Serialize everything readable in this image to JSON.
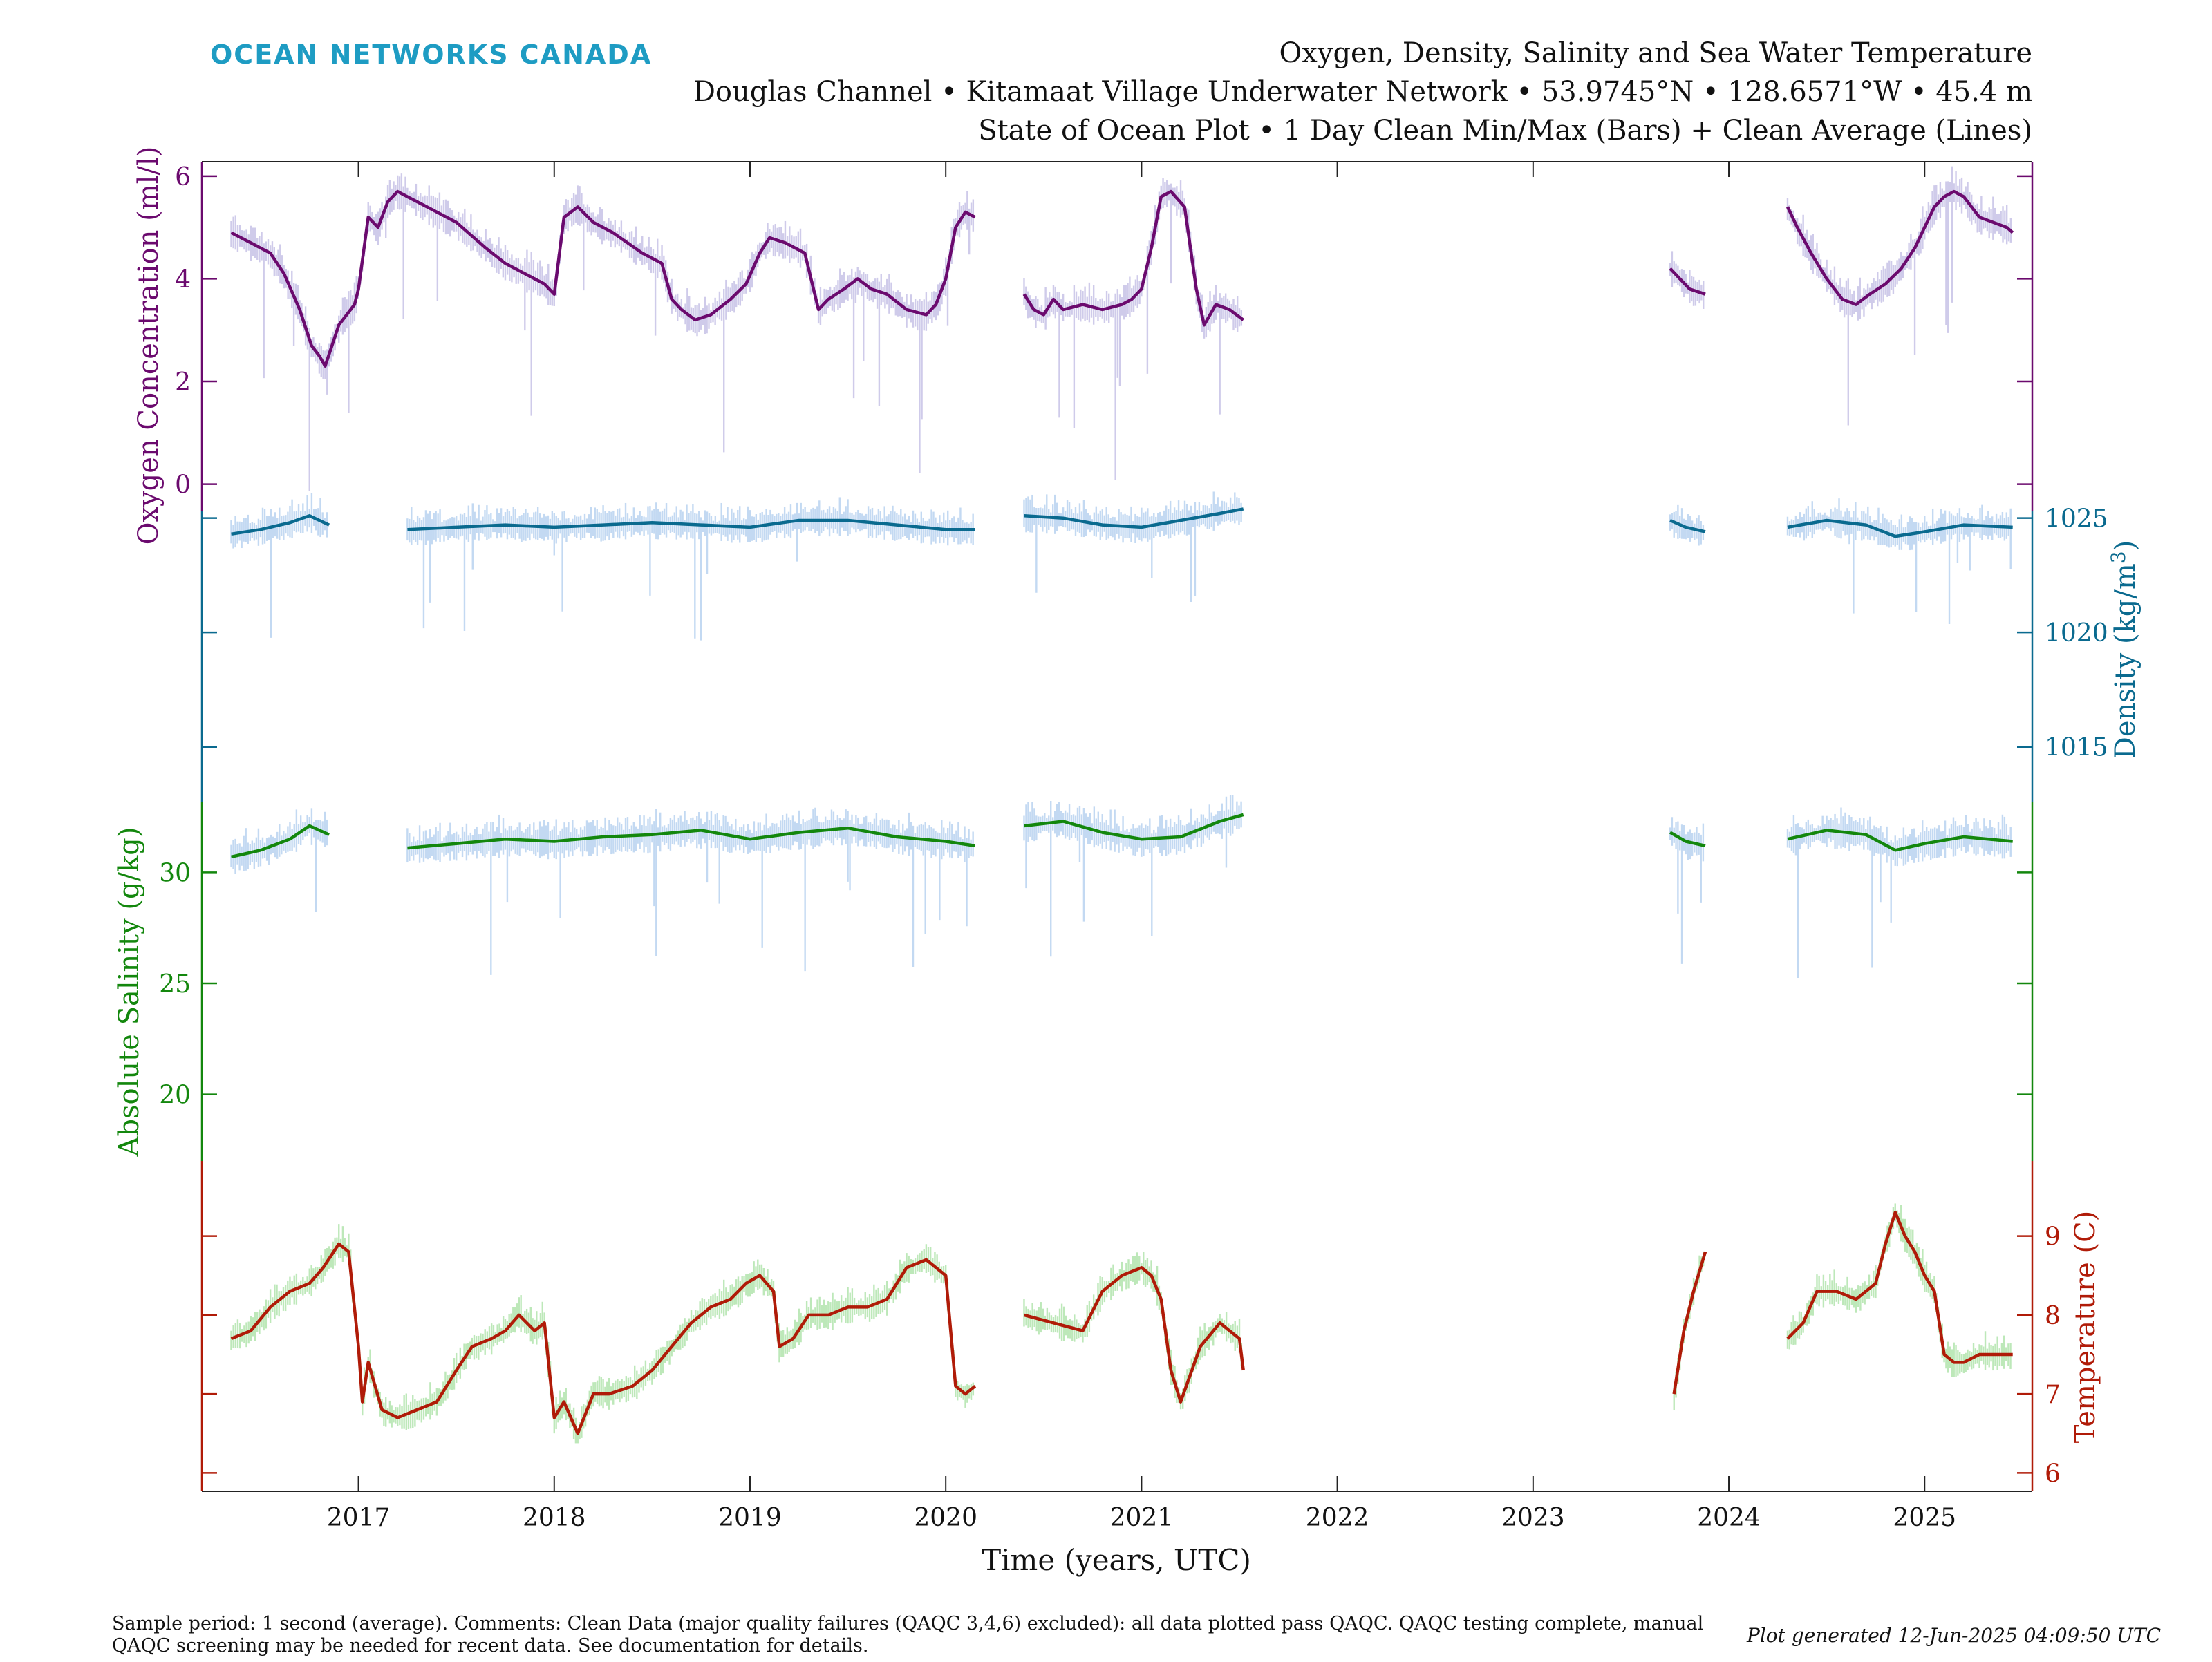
{
  "header": {
    "brand": "OCEAN NETWORKS CANADA",
    "title_line1": "Oxygen, Density, Salinity and Sea Water Temperature",
    "title_line2": "Douglas Channel • Kitamaat Village Underwater Network • 53.9745°N • 128.6571°W • 45.4 m",
    "title_line3": "State of Ocean Plot • 1 Day Clean Min/Max (Bars) + Clean Average (Lines)"
  },
  "footer": {
    "note_line1": "Sample period: 1 second (average). Comments: Clean Data (major quality failures (QAQC 3,4,6) excluded): all data plotted pass QAQC. QAQC testing complete, manual",
    "note_line2": "QAQC screening may be needed for recent data. See documentation for details.",
    "generated": "Plot generated 12-Jun-2025 04:09:50 UTC"
  },
  "colors": {
    "oxygen": "#6b0a6e",
    "density": "#0a6a8f",
    "salinity": "#13870d",
    "temperature": "#b01b08",
    "range_blue": "#c3d9f2",
    "range_lilac": "#cfcbea",
    "range_green": "#bde8b9",
    "brand": "#1e9cc3"
  },
  "chart_data": {
    "type": "line",
    "xlabel": "Time (years, UTC)",
    "xlim": [
      2016.2,
      2025.55
    ],
    "xticks": [
      2017,
      2018,
      2019,
      2020,
      2021,
      2022,
      2023,
      2024,
      2025
    ],
    "xtick_labels": [
      "2017",
      "2018",
      "2019",
      "2020",
      "2021",
      "2022",
      "2023",
      "2024",
      "2025"
    ],
    "legend": "none",
    "grid": false,
    "series": [
      {
        "name": "Oxygen Concentration",
        "ylabel": "Oxygen Concentration (ml/l)",
        "axis_side": "left",
        "ylim": [
          -0.8,
          6.2
        ],
        "yticks": [
          0,
          2,
          4,
          6
        ],
        "ytick_labels": [
          "0",
          "2",
          "4",
          "6"
        ],
        "x": [
          2016.35,
          2016.45,
          2016.55,
          2016.62,
          2016.7,
          2016.76,
          2016.8,
          2016.83,
          2016.9,
          2016.98,
          2017.0,
          2017.05,
          2017.1,
          2017.15,
          2017.2,
          2017.25,
          2017.35,
          2017.5,
          2017.65,
          2017.75,
          2017.85,
          2017.95,
          2018.0,
          2018.05,
          2018.12,
          2018.2,
          2018.3,
          2018.45,
          2018.55,
          2018.6,
          2018.65,
          2018.72,
          2018.8,
          2018.9,
          2018.98,
          2019.05,
          2019.1,
          2019.18,
          2019.28,
          2019.35,
          2019.4,
          2019.48,
          2019.55,
          2019.62,
          2019.7,
          2019.8,
          2019.9,
          2019.95,
          2020.0,
          2020.05,
          2020.1,
          2020.15,
          null,
          2020.4,
          2020.45,
          2020.5,
          2020.55,
          2020.6,
          2020.7,
          2020.8,
          2020.9,
          2020.95,
          2021.0,
          2021.05,
          2021.1,
          2021.15,
          2021.22,
          2021.28,
          2021.32,
          2021.38,
          2021.45,
          2021.52,
          null,
          2023.7,
          2023.75,
          2023.8,
          2023.88,
          null,
          2024.3,
          2024.35,
          2024.42,
          2024.5,
          2024.58,
          2024.65,
          2024.72,
          2024.8,
          2024.88,
          2024.95,
          2025.0,
          2025.05,
          2025.1,
          2025.15,
          2025.2,
          2025.28,
          2025.35,
          2025.42,
          2025.45
        ],
        "values": [
          4.9,
          4.7,
          4.5,
          4.1,
          3.4,
          2.7,
          2.5,
          2.3,
          3.1,
          3.5,
          3.8,
          5.2,
          5.0,
          5.5,
          5.7,
          5.6,
          5.4,
          5.1,
          4.6,
          4.3,
          4.1,
          3.9,
          3.7,
          5.2,
          5.4,
          5.1,
          4.9,
          4.5,
          4.3,
          3.6,
          3.4,
          3.2,
          3.3,
          3.6,
          3.9,
          4.5,
          4.8,
          4.7,
          4.5,
          3.4,
          3.6,
          3.8,
          4.0,
          3.8,
          3.7,
          3.4,
          3.3,
          3.5,
          4.0,
          5.0,
          5.3,
          5.2,
          null,
          3.7,
          3.4,
          3.3,
          3.6,
          3.4,
          3.5,
          3.4,
          3.5,
          3.6,
          3.8,
          4.6,
          5.6,
          5.7,
          5.4,
          3.8,
          3.1,
          3.5,
          3.4,
          3.2,
          null,
          4.2,
          4.0,
          3.8,
          3.7,
          null,
          5.4,
          5.0,
          4.5,
          4.0,
          3.6,
          3.5,
          3.7,
          3.9,
          4.2,
          4.6,
          5.0,
          5.4,
          5.6,
          5.7,
          5.6,
          5.2,
          5.1,
          5.0,
          4.9
        ]
      },
      {
        "name": "Density",
        "ylabel": "Density (kg/m3)",
        "axis_side": "right",
        "ylim": [
          1012,
          1026.5
        ],
        "yticks": [
          1015,
          1020,
          1025
        ],
        "ytick_labels": [
          "1015",
          "1020",
          "1025"
        ],
        "x": [
          2016.35,
          2016.5,
          2016.65,
          2016.75,
          2016.85,
          null,
          2017.25,
          2017.5,
          2017.75,
          2018.0,
          2018.25,
          2018.5,
          2018.75,
          2019.0,
          2019.25,
          2019.5,
          2019.75,
          2020.0,
          2020.15,
          null,
          2020.4,
          2020.6,
          2020.8,
          2021.0,
          2021.2,
          2021.4,
          2021.52,
          null,
          2023.7,
          2023.78,
          2023.88,
          null,
          2024.3,
          2024.5,
          2024.7,
          2024.85,
          2025.0,
          2025.2,
          2025.45
        ],
        "values": [
          1024.3,
          1024.5,
          1024.8,
          1025.1,
          1024.7,
          null,
          1024.5,
          1024.6,
          1024.7,
          1024.6,
          1024.7,
          1024.8,
          1024.7,
          1024.6,
          1024.9,
          1024.9,
          1024.7,
          1024.5,
          1024.5,
          null,
          1025.1,
          1025.0,
          1024.7,
          1024.6,
          1024.9,
          1025.2,
          1025.4,
          null,
          1024.9,
          1024.6,
          1024.4,
          null,
          1024.6,
          1024.9,
          1024.7,
          1024.2,
          1024.4,
          1024.7,
          1024.6
        ]
      },
      {
        "name": "Absolute Salinity",
        "ylabel": "Absolute Salinity (g/kg)",
        "axis_side": "left",
        "ylim": [
          17,
          33.5
        ],
        "yticks": [
          20,
          25,
          30
        ],
        "ytick_labels": [
          "20",
          "25",
          "30"
        ],
        "x": [
          2016.35,
          2016.5,
          2016.65,
          2016.75,
          2016.85,
          null,
          2017.25,
          2017.5,
          2017.75,
          2018.0,
          2018.25,
          2018.5,
          2018.75,
          2019.0,
          2019.25,
          2019.5,
          2019.75,
          2020.0,
          2020.15,
          null,
          2020.4,
          2020.6,
          2020.8,
          2021.0,
          2021.2,
          2021.4,
          2021.52,
          null,
          2023.7,
          2023.78,
          2023.88,
          null,
          2024.3,
          2024.5,
          2024.7,
          2024.85,
          2025.0,
          2025.2,
          2025.45
        ],
        "values": [
          30.7,
          31.0,
          31.5,
          32.1,
          31.7,
          null,
          31.1,
          31.3,
          31.5,
          31.4,
          31.6,
          31.7,
          31.9,
          31.5,
          31.8,
          32.0,
          31.6,
          31.4,
          31.2,
          null,
          32.1,
          32.3,
          31.8,
          31.5,
          31.6,
          32.3,
          32.6,
          null,
          31.8,
          31.4,
          31.2,
          null,
          31.5,
          31.9,
          31.7,
          31.0,
          31.3,
          31.6,
          31.4
        ]
      },
      {
        "name": "Temperature",
        "ylabel": "Temperature (C)",
        "axis_side": "right",
        "ylim": [
          5.75,
          9.95
        ],
        "yticks": [
          6,
          7,
          8,
          9
        ],
        "ytick_labels": [
          "6",
          "7",
          "8",
          "9"
        ],
        "x": [
          2016.35,
          2016.45,
          2016.55,
          2016.65,
          2016.75,
          2016.82,
          2016.9,
          2016.95,
          2017.0,
          2017.02,
          2017.05,
          2017.12,
          2017.2,
          2017.3,
          2017.4,
          2017.5,
          2017.58,
          2017.68,
          2017.75,
          2017.82,
          2017.9,
          2017.95,
          2018.0,
          2018.05,
          2018.12,
          2018.2,
          2018.28,
          2018.4,
          2018.5,
          2018.6,
          2018.7,
          2018.8,
          2018.9,
          2018.98,
          2019.05,
          2019.12,
          2019.15,
          2019.22,
          2019.3,
          2019.4,
          2019.5,
          2019.6,
          2019.7,
          2019.8,
          2019.9,
          2020.0,
          2020.05,
          2020.1,
          2020.15,
          null,
          2020.4,
          2020.55,
          2020.7,
          2020.8,
          2020.9,
          2021.0,
          2021.05,
          2021.1,
          2021.15,
          2021.2,
          2021.3,
          2021.4,
          2021.5,
          2021.52,
          null,
          2023.72,
          2023.77,
          2023.82,
          2023.88,
          null,
          2024.3,
          2024.38,
          2024.45,
          2024.55,
          2024.65,
          2024.75,
          2024.8,
          2024.85,
          2024.9,
          2024.95,
          2025.0,
          2025.05,
          2025.1,
          2025.15,
          2025.2,
          2025.28,
          2025.35,
          2025.45
        ],
        "values": [
          7.7,
          7.8,
          8.1,
          8.3,
          8.4,
          8.6,
          8.9,
          8.8,
          7.6,
          6.9,
          7.4,
          6.8,
          6.7,
          6.8,
          6.9,
          7.3,
          7.6,
          7.7,
          7.8,
          8.0,
          7.8,
          7.9,
          6.7,
          6.9,
          6.5,
          7.0,
          7.0,
          7.1,
          7.3,
          7.6,
          7.9,
          8.1,
          8.2,
          8.4,
          8.5,
          8.3,
          7.6,
          7.7,
          8.0,
          8.0,
          8.1,
          8.1,
          8.2,
          8.6,
          8.7,
          8.5,
          7.1,
          7.0,
          7.1,
          null,
          8.0,
          7.9,
          7.8,
          8.3,
          8.5,
          8.6,
          8.5,
          8.2,
          7.3,
          6.9,
          7.6,
          7.9,
          7.7,
          7.3,
          null,
          7.0,
          7.8,
          8.3,
          8.8,
          null,
          7.7,
          7.9,
          8.3,
          8.3,
          8.2,
          8.4,
          8.9,
          9.3,
          9.0,
          8.8,
          8.5,
          8.3,
          7.5,
          7.4,
          7.4,
          7.5,
          7.5,
          7.5
        ]
      }
    ]
  }
}
